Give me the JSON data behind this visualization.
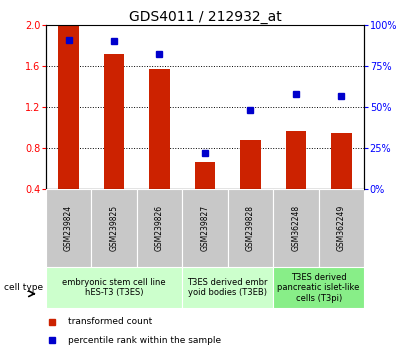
{
  "title": "GDS4011 / 212932_at",
  "samples": [
    "GSM239824",
    "GSM239825",
    "GSM239826",
    "GSM239827",
    "GSM239828",
    "GSM362248",
    "GSM362249"
  ],
  "red_values": [
    2.0,
    1.72,
    1.57,
    0.67,
    0.88,
    0.97,
    0.95
  ],
  "blue_values_pct": [
    91,
    90,
    82,
    22,
    48,
    58,
    57
  ],
  "ylim_left": [
    0.4,
    2.0
  ],
  "ylim_right": [
    0,
    100
  ],
  "yticks_left": [
    0.4,
    0.8,
    1.2,
    1.6,
    2.0
  ],
  "yticks_right": [
    0,
    25,
    50,
    75,
    100
  ],
  "ytick_labels_right": [
    "0%",
    "25%",
    "50%",
    "75%",
    "100%"
  ],
  "bar_color": "#cc2200",
  "dot_color": "#0000cc",
  "bar_bottom": 0.4,
  "bar_width": 0.45,
  "groups": [
    {
      "label": "embryonic stem cell line\nhES-T3 (T3ES)",
      "start": 0,
      "end": 3,
      "color": "#ccffcc"
    },
    {
      "label": "T3ES derived embr\nyoid bodies (T3EB)",
      "start": 3,
      "end": 5,
      "color": "#ccffcc"
    },
    {
      "label": "T3ES derived\npancreatic islet-like\ncells (T3pi)",
      "start": 5,
      "end": 7,
      "color": "#88ee88"
    }
  ],
  "legend_red": "transformed count",
  "legend_blue": "percentile rank within the sample",
  "cell_type_label": "cell type",
  "gray_box_color": "#c8c8c8",
  "grid_linestyle": "dotted",
  "title_fontsize": 10,
  "tick_fontsize": 7,
  "sample_fontsize": 5.5,
  "group_fontsize": 6,
  "legend_fontsize": 6.5
}
